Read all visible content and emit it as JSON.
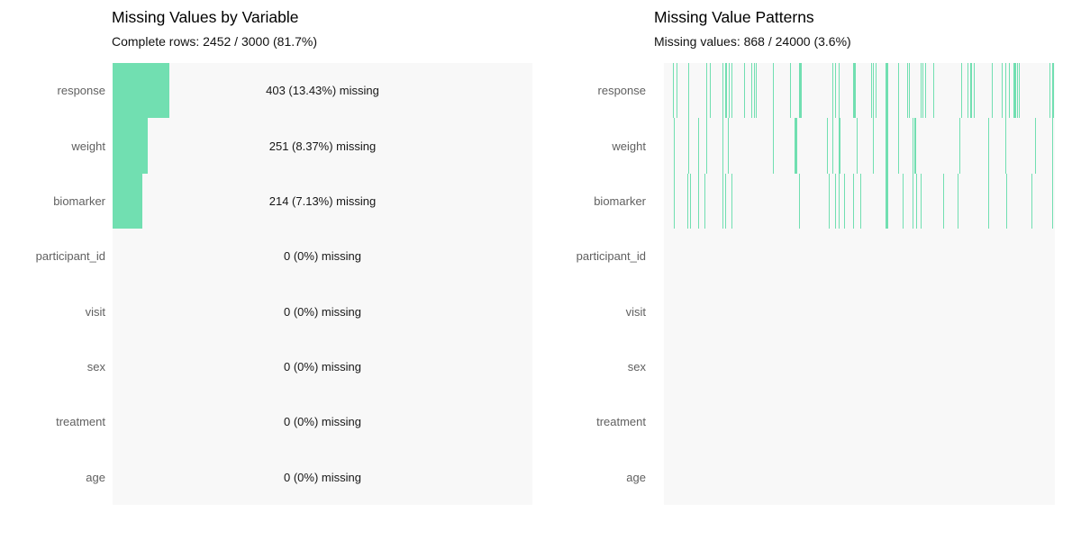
{
  "figure": {
    "background": "#ffffff",
    "accent_color": "#71dfb1",
    "panel_background": "#f8f8f8",
    "label_color": "#606060",
    "text_color": "#171717"
  },
  "chart_data": [
    {
      "type": "bar",
      "orientation": "horizontal",
      "title": "Missing Values by Variable",
      "subtitle": "Complete rows: 2452 / 3000 (81.7%)",
      "categories": [
        "response",
        "weight",
        "biomarker",
        "participant_id",
        "visit",
        "sex",
        "treatment",
        "age"
      ],
      "values": [
        403,
        251,
        214,
        0,
        0,
        0,
        0,
        0
      ],
      "pct_missing": [
        13.43,
        8.37,
        7.13,
        0,
        0,
        0,
        0,
        0
      ],
      "bar_labels": [
        "403 (13.43%) missing",
        "251 (8.37%) missing",
        "214 (7.13%) missing",
        "0 (0%) missing",
        "0 (0%) missing",
        "0 (0%) missing",
        "0 (0%) missing",
        "0 (0%) missing"
      ],
      "xlim": [
        0,
        100
      ],
      "grid": false,
      "legend": false,
      "bar_color": "#71dfb1"
    },
    {
      "type": "heatmap",
      "variant": "missingness-pattern",
      "title": "Missing Value Patterns",
      "subtitle": "Missing values: 868 / 24000 (3.6%)",
      "categories": [
        "response",
        "weight",
        "biomarker",
        "participant_id",
        "visit",
        "sex",
        "treatment",
        "age"
      ],
      "n_data_rows": 3000,
      "total_cells": 24000,
      "total_missing": 868,
      "tick_color": "#71dfb1",
      "ticks_pct_and_width": {
        "response": [
          [
            2.3,
            1
          ],
          [
            3.2,
            1
          ],
          [
            6.2,
            1
          ],
          [
            10.8,
            1
          ],
          [
            11.8,
            1
          ],
          [
            15.0,
            1
          ],
          [
            15.7,
            2
          ],
          [
            16.6,
            1
          ],
          [
            17.3,
            1
          ],
          [
            20.5,
            1
          ],
          [
            22.4,
            1
          ],
          [
            23.0,
            1
          ],
          [
            23.5,
            1
          ],
          [
            27.9,
            1
          ],
          [
            32.3,
            1
          ],
          [
            34.6,
            3
          ],
          [
            43.1,
            1
          ],
          [
            43.8,
            1
          ],
          [
            44.7,
            1
          ],
          [
            48.4,
            3
          ],
          [
            53.0,
            1
          ],
          [
            53.5,
            1
          ],
          [
            54.1,
            1
          ],
          [
            56.7,
            3
          ],
          [
            59.9,
            1
          ],
          [
            62.2,
            1
          ],
          [
            62.7,
            1
          ],
          [
            65.7,
            1
          ],
          [
            66.1,
            1
          ],
          [
            66.8,
            1
          ],
          [
            68.9,
            1
          ],
          [
            76.0,
            1
          ],
          [
            77.6,
            1
          ],
          [
            78.3,
            2
          ],
          [
            79.3,
            1
          ],
          [
            83.9,
            1
          ],
          [
            86.4,
            1
          ],
          [
            87.3,
            1
          ],
          [
            88.2,
            1
          ],
          [
            89.4,
            3
          ],
          [
            90.3,
            1
          ],
          [
            90.8,
            1
          ],
          [
            98.6,
            1
          ],
          [
            99.3,
            2
          ]
        ],
        "weight": [
          [
            2.5,
            1
          ],
          [
            6.2,
            1
          ],
          [
            8.8,
            1
          ],
          [
            10.8,
            1
          ],
          [
            15.0,
            1
          ],
          [
            16.4,
            1
          ],
          [
            27.9,
            1
          ],
          [
            33.4,
            3
          ],
          [
            41.7,
            1
          ],
          [
            43.1,
            1
          ],
          [
            44.7,
            2
          ],
          [
            49.3,
            1
          ],
          [
            53.5,
            1
          ],
          [
            56.7,
            3
          ],
          [
            59.9,
            1
          ],
          [
            63.6,
            1
          ],
          [
            64.0,
            2
          ],
          [
            75.6,
            1
          ],
          [
            82.9,
            1
          ],
          [
            87.3,
            1
          ],
          [
            94.9,
            1
          ],
          [
            99.3,
            1
          ]
        ],
        "biomarker": [
          [
            2.5,
            1
          ],
          [
            6.0,
            1
          ],
          [
            6.7,
            1
          ],
          [
            8.8,
            1
          ],
          [
            10.4,
            1
          ],
          [
            15.0,
            1
          ],
          [
            15.7,
            1
          ],
          [
            17.3,
            1
          ],
          [
            34.6,
            1
          ],
          [
            42.2,
            1
          ],
          [
            43.8,
            1
          ],
          [
            44.7,
            1
          ],
          [
            46.1,
            1
          ],
          [
            48.4,
            1
          ],
          [
            50.2,
            1
          ],
          [
            56.7,
            3
          ],
          [
            61.1,
            1
          ],
          [
            63.6,
            1
          ],
          [
            64.5,
            1
          ],
          [
            65.7,
            1
          ],
          [
            71.4,
            1
          ],
          [
            75.1,
            1
          ],
          [
            82.9,
            1
          ],
          [
            87.5,
            1
          ],
          [
            94.0,
            1
          ],
          [
            99.3,
            1
          ]
        ],
        "participant_id": [],
        "visit": [],
        "sex": [],
        "treatment": [],
        "age": []
      }
    }
  ]
}
